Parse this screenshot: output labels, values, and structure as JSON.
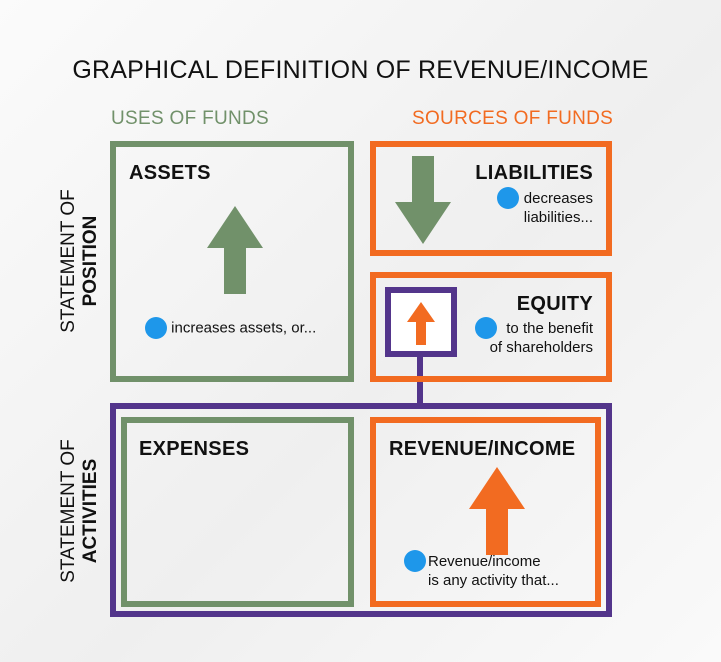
{
  "title": "GRAPHICAL DEFINITION OF REVENUE/INCOME",
  "columns": {
    "uses": "USES OF FUNDS",
    "sources": "SOURCES OF FUNDS"
  },
  "rows": {
    "position": {
      "line1": "STATEMENT OF",
      "line2": "POSITION"
    },
    "activities": {
      "line1": "STATEMENT OF",
      "line2": "ACTIVITIES"
    }
  },
  "boxes": {
    "assets": {
      "title": "ASSETS",
      "note": "increases assets, or..."
    },
    "liabilities": {
      "title": "LIABILITIES",
      "note_line1": "decreases",
      "note_line2": "liabilities..."
    },
    "equity": {
      "title": "EQUITY",
      "note_line1": "to the benefit",
      "note_line2": "of shareholders"
    },
    "expenses": {
      "title": "EXPENSES"
    },
    "revenue": {
      "title": "REVENUE/INCOME",
      "note_line1": "Revenue/income",
      "note_line2": "is any activity that..."
    }
  },
  "colors": {
    "green": "#71916a",
    "orange": "#f26b21",
    "purple": "#53358b",
    "blue_dot": "#1e97ea"
  }
}
